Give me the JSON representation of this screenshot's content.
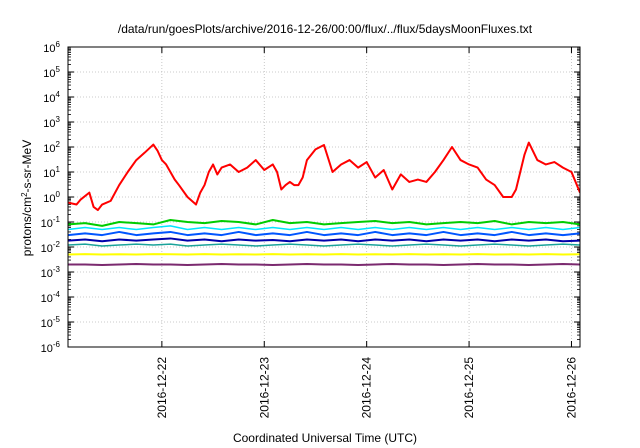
{
  "chart_data": {
    "type": "line",
    "title": "/data/run/goesPlots/archive/2016-12-26/00:00/flux/../flux/5daysMoonFluxes.txt",
    "xlabel": "Coordinated Universal Time (UTC)",
    "ylabel": {
      "base": "protons/cm",
      "sup": "2",
      "rest": "-s-sr-MeV"
    },
    "yscale": "log",
    "ylim": [
      1e-06,
      1000000.0
    ],
    "ytick_labels": [
      {
        "base": "10",
        "exp": "-6"
      },
      {
        "base": "10",
        "exp": "-5"
      },
      {
        "base": "10",
        "exp": "-4"
      },
      {
        "base": "10",
        "exp": "-3"
      },
      {
        "base": "10",
        "exp": "-2"
      },
      {
        "base": "10",
        "exp": "-1"
      },
      {
        "base": "10",
        "exp": "0"
      },
      {
        "base": "10",
        "exp": "1"
      },
      {
        "base": "10",
        "exp": "2"
      },
      {
        "base": "10",
        "exp": "3"
      },
      {
        "base": "10",
        "exp": "4"
      },
      {
        "base": "10",
        "exp": "5"
      },
      {
        "base": "10",
        "exp": "6"
      }
    ],
    "xlim": [
      "2016-12-21 02:00",
      "2016-12-26 02:00"
    ],
    "xtick_labels": [
      "2016-12-22",
      "2016-12-23",
      "2016-12-24",
      "2016-12-25",
      "2016-12-26"
    ],
    "grid": true,
    "legend": "none",
    "series": [
      {
        "color": "#ff0000",
        "width": 2,
        "x_hours": [
          0,
          2,
          3,
          5,
          6,
          7,
          8,
          10,
          12,
          14,
          16,
          18,
          20,
          21,
          22,
          23,
          24,
          25,
          26,
          28,
          30,
          31,
          32,
          33,
          34,
          35,
          36,
          38,
          40,
          42,
          44,
          46,
          48,
          49,
          50,
          51,
          52,
          53,
          54,
          55,
          56,
          58,
          60,
          62,
          64,
          66,
          68,
          70,
          72,
          74,
          76,
          78,
          80,
          82,
          84,
          86,
          88,
          90,
          92,
          94,
          96,
          98,
          100,
          102,
          104,
          105,
          106,
          107,
          108,
          110,
          112,
          114,
          116,
          118,
          120
        ],
        "values": [
          0.6,
          0.5,
          0.8,
          1.5,
          0.4,
          0.3,
          0.5,
          0.7,
          3,
          10,
          30,
          60,
          125,
          70,
          30,
          20,
          10,
          5,
          3,
          1,
          0.5,
          1.5,
          3,
          10,
          20,
          8,
          15,
          20,
          10,
          15,
          30,
          12,
          20,
          10,
          2,
          3,
          4,
          3,
          3,
          6,
          30,
          80,
          120,
          10,
          20,
          30,
          15,
          25,
          6,
          12,
          2,
          8,
          4,
          5,
          4,
          10,
          30,
          100,
          30,
          20,
          15,
          5,
          3,
          1,
          1,
          2,
          10,
          50,
          150,
          30,
          20,
          25,
          15,
          10,
          1.5
        ]
      },
      {
        "color": "#00cc00",
        "width": 2,
        "x_hours": [
          0,
          4,
          8,
          12,
          16,
          20,
          24,
          28,
          32,
          36,
          40,
          44,
          48,
          52,
          56,
          60,
          64,
          68,
          72,
          76,
          80,
          84,
          88,
          92,
          96,
          100,
          104,
          108,
          112,
          116,
          120
        ],
        "values": [
          0.08,
          0.09,
          0.07,
          0.1,
          0.09,
          0.08,
          0.12,
          0.1,
          0.09,
          0.11,
          0.1,
          0.08,
          0.12,
          0.09,
          0.1,
          0.08,
          0.09,
          0.1,
          0.11,
          0.09,
          0.1,
          0.08,
          0.09,
          0.1,
          0.09,
          0.11,
          0.08,
          0.1,
          0.09,
          0.1,
          0.08
        ]
      },
      {
        "color": "#00e5ff",
        "width": 1.5,
        "x_hours": [
          0,
          4,
          8,
          12,
          16,
          20,
          24,
          28,
          32,
          36,
          40,
          44,
          48,
          52,
          56,
          60,
          64,
          68,
          72,
          76,
          80,
          84,
          88,
          92,
          96,
          100,
          104,
          108,
          112,
          116,
          120
        ],
        "values": [
          0.05,
          0.06,
          0.05,
          0.06,
          0.05,
          0.06,
          0.07,
          0.05,
          0.06,
          0.05,
          0.06,
          0.05,
          0.06,
          0.05,
          0.06,
          0.05,
          0.06,
          0.05,
          0.06,
          0.05,
          0.06,
          0.05,
          0.06,
          0.05,
          0.06,
          0.05,
          0.06,
          0.05,
          0.06,
          0.05,
          0.06
        ]
      },
      {
        "color": "#0055ff",
        "width": 2,
        "x_hours": [
          0,
          4,
          8,
          12,
          16,
          20,
          24,
          28,
          32,
          36,
          40,
          44,
          48,
          52,
          56,
          60,
          64,
          68,
          72,
          76,
          80,
          84,
          88,
          92,
          96,
          100,
          104,
          108,
          112,
          116,
          120
        ],
        "values": [
          0.03,
          0.035,
          0.03,
          0.04,
          0.03,
          0.035,
          0.04,
          0.03,
          0.035,
          0.03,
          0.04,
          0.03,
          0.035,
          0.03,
          0.04,
          0.03,
          0.035,
          0.03,
          0.04,
          0.03,
          0.035,
          0.03,
          0.04,
          0.03,
          0.035,
          0.03,
          0.04,
          0.03,
          0.035,
          0.03,
          0.035
        ]
      },
      {
        "color": "#0000aa",
        "width": 2,
        "x_hours": [
          0,
          4,
          8,
          12,
          16,
          20,
          24,
          28,
          32,
          36,
          40,
          44,
          48,
          52,
          56,
          60,
          64,
          68,
          72,
          76,
          80,
          84,
          88,
          92,
          96,
          100,
          104,
          108,
          112,
          116,
          120
        ],
        "values": [
          0.018,
          0.02,
          0.017,
          0.02,
          0.018,
          0.02,
          0.022,
          0.018,
          0.02,
          0.017,
          0.02,
          0.018,
          0.019,
          0.017,
          0.02,
          0.018,
          0.02,
          0.017,
          0.02,
          0.018,
          0.02,
          0.017,
          0.02,
          0.018,
          0.02,
          0.017,
          0.02,
          0.018,
          0.02,
          0.017,
          0.018
        ]
      },
      {
        "color": "#1aa39a",
        "width": 1.5,
        "x_hours": [
          0,
          4,
          8,
          12,
          16,
          20,
          24,
          28,
          32,
          36,
          40,
          44,
          48,
          52,
          56,
          60,
          64,
          68,
          72,
          76,
          80,
          84,
          88,
          92,
          96,
          100,
          104,
          108,
          112,
          116,
          120
        ],
        "values": [
          0.012,
          0.013,
          0.011,
          0.012,
          0.013,
          0.012,
          0.013,
          0.011,
          0.012,
          0.013,
          0.012,
          0.011,
          0.012,
          0.013,
          0.012,
          0.011,
          0.012,
          0.013,
          0.012,
          0.011,
          0.012,
          0.013,
          0.012,
          0.011,
          0.012,
          0.013,
          0.012,
          0.011,
          0.012,
          0.013,
          0.012
        ]
      },
      {
        "color": "#ffff00",
        "width": 2,
        "x_hours": [
          0,
          4,
          8,
          12,
          16,
          20,
          24,
          28,
          32,
          36,
          40,
          44,
          48,
          52,
          56,
          60,
          64,
          68,
          72,
          76,
          80,
          84,
          88,
          92,
          96,
          100,
          104,
          108,
          112,
          116,
          120
        ],
        "values": [
          0.005,
          0.0052,
          0.005,
          0.0051,
          0.005,
          0.0052,
          0.0051,
          0.005,
          0.0052,
          0.005,
          0.0051,
          0.005,
          0.0052,
          0.005,
          0.0051,
          0.005,
          0.0052,
          0.005,
          0.0051,
          0.005,
          0.0052,
          0.005,
          0.0051,
          0.005,
          0.0052,
          0.005,
          0.0051,
          0.005,
          0.0052,
          0.005,
          0.0051
        ]
      },
      {
        "color": "#7b2a6f",
        "width": 2,
        "x_hours": [
          0,
          4,
          8,
          12,
          16,
          20,
          24,
          28,
          32,
          36,
          40,
          44,
          48,
          52,
          56,
          60,
          64,
          68,
          72,
          76,
          80,
          84,
          88,
          92,
          96,
          100,
          104,
          108,
          112,
          116,
          120
        ],
        "values": [
          0.002,
          0.002,
          0.0019,
          0.002,
          0.0021,
          0.002,
          0.002,
          0.0019,
          0.002,
          0.0021,
          0.002,
          0.002,
          0.0019,
          0.002,
          0.0021,
          0.002,
          0.002,
          0.0019,
          0.002,
          0.0021,
          0.002,
          0.002,
          0.0019,
          0.002,
          0.0021,
          0.002,
          0.002,
          0.0019,
          0.002,
          0.0021,
          0.002
        ]
      }
    ]
  }
}
